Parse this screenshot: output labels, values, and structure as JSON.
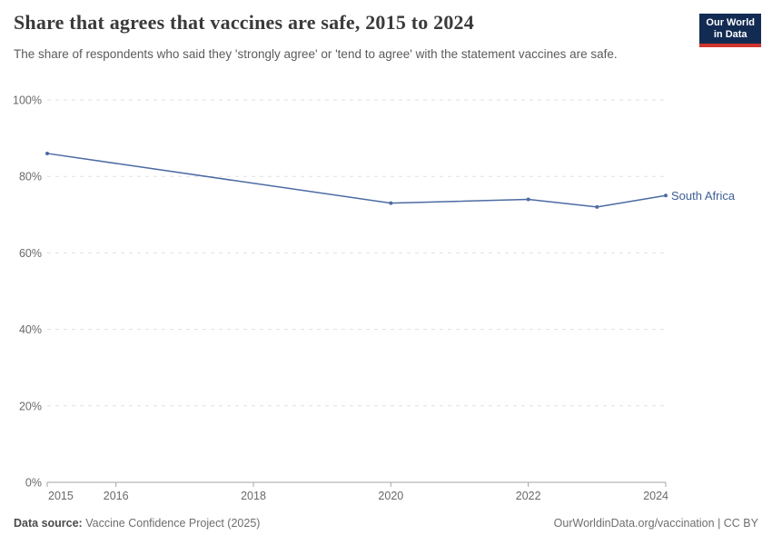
{
  "header": {
    "title": "Share that agrees that vaccines are safe, 2015 to 2024",
    "subtitle": "The share of respondents who said they 'strongly agree' or 'tend to agree' with the statement vaccines are safe.",
    "logo": {
      "line1": "Our World",
      "line2": "in Data"
    }
  },
  "footer": {
    "source_label": "Data source:",
    "source_value": " Vaccine Confidence Project (2025)",
    "credit": "OurWorldinData.org/vaccination | CC BY"
  },
  "chart_data": {
    "type": "line",
    "title": "Share that agrees that vaccines are safe, 2015 to 2024",
    "xlabel": "",
    "ylabel": "",
    "xlim": [
      2015,
      2024
    ],
    "ylim": [
      0,
      100
    ],
    "grid": "horizontal-dashed",
    "legend_position": "end-of-line-label",
    "x": [
      2015,
      2020,
      2022,
      2023,
      2024
    ],
    "series": [
      {
        "name": "South Africa",
        "values": [
          86,
          73,
          74,
          72,
          75
        ]
      }
    ],
    "x_ticks": [
      {
        "v": 2015,
        "label": "2015"
      },
      {
        "v": 2016,
        "label": "2016"
      },
      {
        "v": 2018,
        "label": "2018"
      },
      {
        "v": 2020,
        "label": "2020"
      },
      {
        "v": 2022,
        "label": "2022"
      },
      {
        "v": 2024,
        "label": "2024"
      }
    ],
    "y_ticks": [
      {
        "v": 0,
        "label": "0%"
      },
      {
        "v": 20,
        "label": "20%"
      },
      {
        "v": 40,
        "label": "40%"
      },
      {
        "v": 60,
        "label": "60%"
      },
      {
        "v": 80,
        "label": "80%"
      },
      {
        "v": 100,
        "label": "100%"
      }
    ]
  },
  "colors": {
    "line": "#4c6ba3",
    "series_label": "#3e5e96",
    "grid": "#e0e0e0",
    "axis": "#a5a5a5",
    "tick_text": "#696969",
    "logo_bg": "#122b52",
    "logo_stripe": "#d0342c"
  }
}
